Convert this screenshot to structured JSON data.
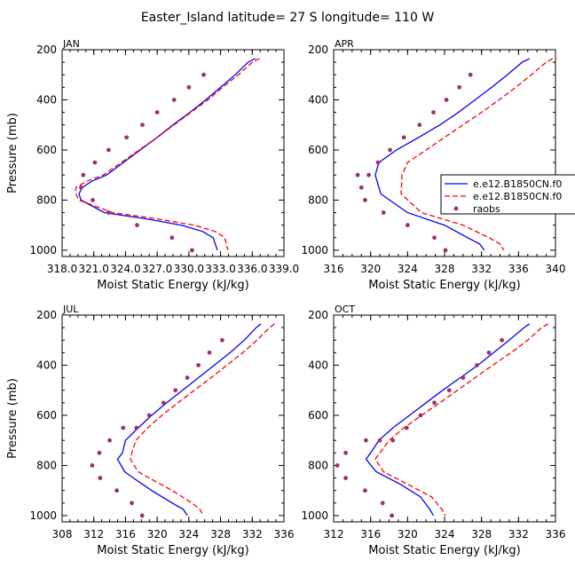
{
  "title": "Easter_Island  latitude= 27 S longitude= 110 W",
  "legend": {
    "entries": [
      {
        "name": "e.e12.B1850CN.f0",
        "color": "#0000ff",
        "dash": "solid"
      },
      {
        "name": "e.e12.B1850CN.f0",
        "color": "#ff0000",
        "dash": "dashed"
      },
      {
        "name": "raobs",
        "color": "#a0306a",
        "dash": "dots"
      }
    ]
  },
  "chart_data": [
    {
      "type": "line",
      "panel": "JAN",
      "xlabel": "Moist Static Energy (kJ/kg)",
      "ylabel": "Pressure (mb)",
      "xlim": [
        318.0,
        339.0
      ],
      "ylim": [
        1025,
        200
      ],
      "xticks": [
        "318.0",
        "321.0",
        "324.0",
        "327.0",
        "330.0",
        "333.0",
        "336.0",
        "339.0"
      ],
      "xtick_values": [
        318,
        321,
        324,
        327,
        330,
        333,
        336,
        339
      ],
      "yticks": [
        200,
        400,
        600,
        800,
        1000
      ],
      "series": [
        {
          "color": "#0000ff",
          "dash": "solid",
          "x": [
            336.3,
            335.6,
            334.4,
            333.0,
            331.6,
            330.1,
            328.5,
            327.0,
            325.4,
            323.8,
            322.2,
            320.8,
            319.9,
            319.6,
            319.8,
            322.0,
            326.0,
            329.3,
            331.3,
            332.3,
            332.7
          ],
          "y": [
            235,
            250,
            300,
            350,
            400,
            450,
            500,
            550,
            600,
            650,
            700,
            725,
            750,
            775,
            800,
            850,
            875,
            900,
            925,
            950,
            1000
          ]
        },
        {
          "color": "#ff0000",
          "dash": "dashed",
          "x": [
            336.7,
            336.0,
            334.7,
            333.2,
            331.8,
            330.2,
            328.6,
            327.0,
            325.3,
            323.6,
            321.9,
            320.3,
            319.3,
            319.3,
            319.6,
            322.8,
            327.0,
            330.5,
            332.5,
            333.4,
            333.7
          ],
          "y": [
            235,
            250,
            300,
            350,
            400,
            450,
            500,
            550,
            600,
            650,
            700,
            725,
            750,
            775,
            800,
            850,
            875,
            900,
            925,
            950,
            1000
          ]
        },
        {
          "color": "#a0306a",
          "dash": "dots",
          "x": [
            331.4,
            330.0,
            328.6,
            327.0,
            325.6,
            324.1,
            322.4,
            321.1,
            320.0,
            319.8,
            320.9,
            322.4,
            325.1,
            328.4,
            330.3
          ],
          "y": [
            300,
            350,
            400,
            450,
            500,
            550,
            600,
            650,
            700,
            750,
            800,
            850,
            900,
            950,
            1000
          ]
        }
      ]
    },
    {
      "type": "line",
      "panel": "APR",
      "xlabel": "Moist Static Energy (kJ/kg)",
      "ylabel": "",
      "xlim": [
        316,
        340
      ],
      "ylim": [
        1025,
        200
      ],
      "xticks": [
        "316",
        "320",
        "324",
        "328",
        "332",
        "336",
        "340"
      ],
      "xtick_values": [
        316,
        320,
        324,
        328,
        332,
        336,
        340
      ],
      "yticks": [
        200,
        400,
        600,
        800,
        1000
      ],
      "series": [
        {
          "color": "#0000ff",
          "dash": "solid",
          "x": [
            337.2,
            336.4,
            334.8,
            333.1,
            331.3,
            329.5,
            327.5,
            325.2,
            322.8,
            320.9,
            320.5,
            321.1,
            324.0,
            328.0,
            330.5,
            331.8,
            332.3
          ],
          "y": [
            235,
            250,
            300,
            350,
            400,
            450,
            500,
            550,
            600,
            650,
            700,
            775,
            850,
            900,
            950,
            975,
            1000
          ]
        },
        {
          "color": "#ff0000",
          "dash": "dashed",
          "x": [
            339.7,
            339.0,
            337.4,
            335.7,
            333.9,
            332.0,
            330.0,
            328.0,
            326.0,
            324.0,
            323.4,
            323.3,
            325.5,
            330.0,
            332.8,
            334.0,
            334.4
          ],
          "y": [
            235,
            250,
            300,
            350,
            400,
            450,
            500,
            550,
            600,
            650,
            700,
            775,
            850,
            900,
            950,
            975,
            1000
          ]
        },
        {
          "color": "#a0306a",
          "dash": "dots",
          "x": [
            330.8,
            329.6,
            328.2,
            326.8,
            325.3,
            323.6,
            322.1,
            320.8,
            319.8,
            319.0,
            318.6,
            319.4,
            321.4,
            324.0,
            326.9,
            328.1
          ],
          "y": [
            300,
            350,
            400,
            450,
            500,
            550,
            600,
            650,
            700,
            750,
            700,
            800,
            850,
            900,
            950,
            1000
          ]
        }
      ]
    },
    {
      "type": "line",
      "panel": "JUL",
      "xlabel": "Moist Static Energy (kJ/kg)",
      "ylabel": "Pressure (mb)",
      "xlim": [
        308,
        336
      ],
      "ylim": [
        1025,
        200
      ],
      "xticks": [
        "308",
        "312",
        "316",
        "320",
        "324",
        "328",
        "332",
        "336"
      ],
      "xtick_values": [
        308,
        312,
        316,
        320,
        324,
        328,
        332,
        336
      ],
      "yticks": [
        200,
        400,
        600,
        800,
        1000
      ],
      "series": [
        {
          "color": "#0000ff",
          "dash": "solid",
          "x": [
            333.1,
            332.5,
            331.0,
            329.2,
            327.2,
            325.2,
            323.2,
            321.2,
            319.3,
            317.6,
            316.0,
            315.6,
            315.0,
            315.9,
            317.0,
            319.3,
            321.9,
            323.3,
            323.8
          ],
          "y": [
            235,
            250,
            300,
            350,
            400,
            450,
            500,
            550,
            600,
            650,
            700,
            750,
            775,
            825,
            850,
            900,
            950,
            975,
            1000
          ]
        },
        {
          "color": "#ff0000",
          "dash": "dashed",
          "x": [
            334.8,
            334.2,
            332.6,
            330.8,
            328.8,
            326.8,
            324.7,
            322.6,
            320.6,
            318.8,
            317.3,
            316.8,
            316.6,
            317.6,
            319.0,
            321.9,
            324.4,
            325.4,
            325.8
          ],
          "y": [
            235,
            250,
            300,
            350,
            400,
            450,
            500,
            550,
            600,
            650,
            700,
            750,
            775,
            825,
            850,
            900,
            950,
            975,
            1000
          ]
        },
        {
          "color": "#a0306a",
          "dash": "dots",
          "x": [
            328.2,
            326.6,
            325.2,
            323.8,
            322.3,
            320.8,
            319.0,
            317.4,
            315.7,
            314.0,
            312.7,
            311.8,
            312.8,
            314.9,
            316.8,
            318.1
          ],
          "y": [
            300,
            350,
            400,
            450,
            500,
            550,
            600,
            650,
            650,
            700,
            750,
            800,
            850,
            900,
            950,
            1000
          ]
        }
      ]
    },
    {
      "type": "line",
      "panel": "OCT",
      "xlabel": "Moist Static Energy (kJ/kg)",
      "ylabel": "",
      "xlim": [
        312,
        336
      ],
      "ylim": [
        1025,
        200
      ],
      "xticks": [
        "312",
        "316",
        "320",
        "324",
        "328",
        "332",
        "336"
      ],
      "xtick_values": [
        312,
        316,
        320,
        324,
        328,
        332,
        336
      ],
      "yticks": [
        200,
        400,
        600,
        800,
        1000
      ],
      "series": [
        {
          "color": "#0000ff",
          "dash": "solid",
          "x": [
            333.2,
            332.6,
            331.0,
            329.3,
            327.6,
            325.7,
            323.8,
            322.0,
            320.2,
            318.4,
            316.9,
            316.0,
            315.5,
            316.6,
            319.2,
            321.4,
            322.4,
            322.8
          ],
          "y": [
            235,
            250,
            300,
            350,
            400,
            450,
            500,
            550,
            600,
            650,
            700,
            750,
            775,
            825,
            875,
            925,
            975,
            1000
          ]
        },
        {
          "color": "#ff0000",
          "dash": "dashed",
          "x": [
            335.2,
            334.5,
            333.0,
            331.2,
            329.2,
            327.3,
            325.4,
            323.5,
            321.5,
            319.6,
            318.0,
            317.0,
            316.5,
            317.4,
            320.0,
            322.6,
            323.7,
            324.1
          ],
          "y": [
            235,
            250,
            300,
            350,
            400,
            450,
            500,
            550,
            600,
            650,
            700,
            750,
            775,
            825,
            875,
            925,
            975,
            1000
          ]
        },
        {
          "color": "#a0306a",
          "dash": "dots",
          "x": [
            330.2,
            328.8,
            327.5,
            326.0,
            324.5,
            322.9,
            321.4,
            319.9,
            318.4,
            317.0,
            315.5,
            313.3,
            312.4,
            313.3,
            315.4,
            317.3,
            318.3
          ],
          "y": [
            300,
            350,
            400,
            450,
            500,
            550,
            600,
            650,
            700,
            700,
            700,
            750,
            800,
            850,
            900,
            950,
            1000
          ]
        }
      ]
    }
  ]
}
